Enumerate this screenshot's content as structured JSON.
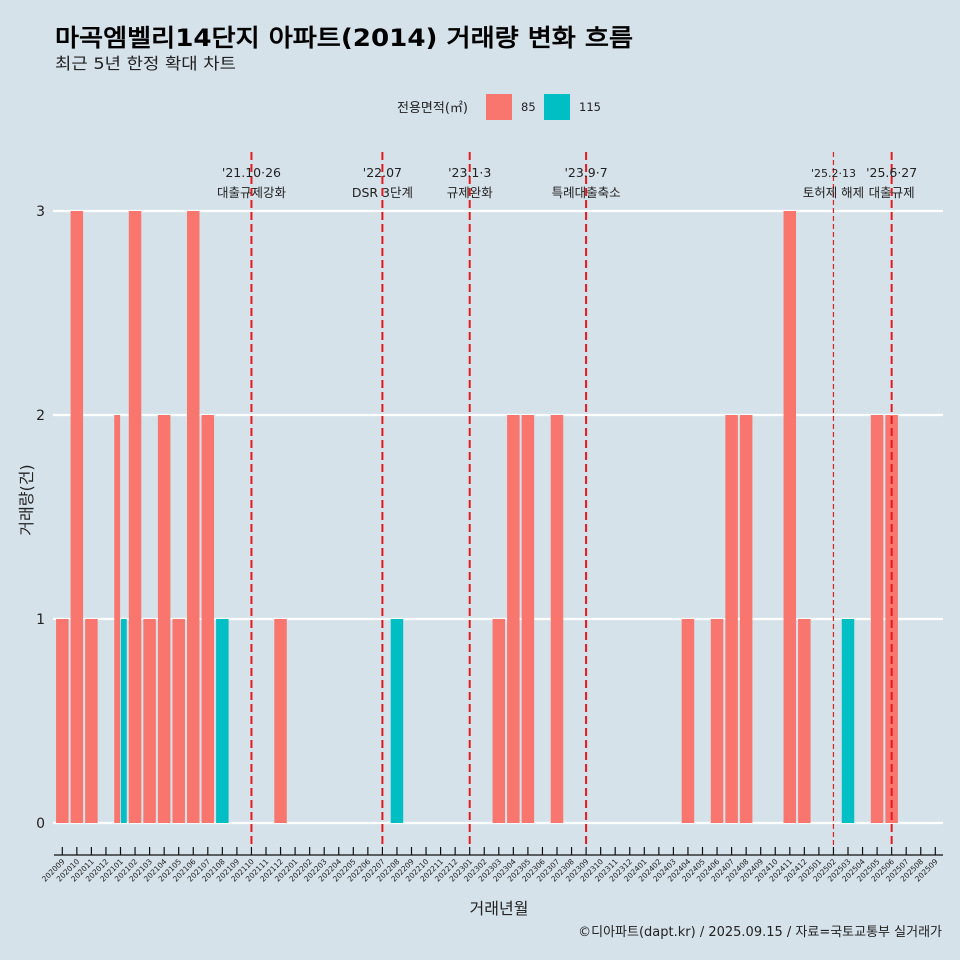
{
  "colors": {
    "background": "#D6E2EA",
    "series_85": "#F8766D",
    "series_115": "#00BFC4",
    "event_line": "#E41A1C",
    "grid": "#FFFFFF"
  },
  "header": {
    "title": "마곡엠벨리14단지 아파트(2014) 거래량 변화 흐름",
    "subtitle": "최근 5년 한정 확대 차트"
  },
  "legend": {
    "title": "전용면적(㎡)",
    "items": [
      {
        "label": "85",
        "color": "#F8766D"
      },
      {
        "label": "115",
        "color": "#00BFC4"
      }
    ]
  },
  "caption": "©디아파트(dapt.kr) / 2025.09.15 / 자료=국토교통부 실거래가",
  "chart_data": {
    "type": "bar",
    "title": "마곡엠벨리14단지 아파트(2014) 거래량 변화 흐름",
    "subtitle": "최근 5년 한정 확대 차트",
    "xlabel": "거래년월",
    "ylabel": "거래량(건)",
    "ylim": [
      0,
      3
    ],
    "yticks": [
      "0",
      "1",
      "2",
      "3"
    ],
    "grid": true,
    "legend_position": "top",
    "bar_mode": "dodge",
    "categories": [
      "202009",
      "202010",
      "202011",
      "202012",
      "202101",
      "202102",
      "202103",
      "202104",
      "202105",
      "202106",
      "202107",
      "202108",
      "202109",
      "202110",
      "202111",
      "202112",
      "202201",
      "202202",
      "202203",
      "202204",
      "202205",
      "202206",
      "202207",
      "202208",
      "202209",
      "202210",
      "202211",
      "202212",
      "202301",
      "202302",
      "202303",
      "202304",
      "202305",
      "202306",
      "202307",
      "202308",
      "202309",
      "202310",
      "202311",
      "202312",
      "202401",
      "202402",
      "202403",
      "202404",
      "202405",
      "202406",
      "202407",
      "202408",
      "202409",
      "202410",
      "202411",
      "202412",
      "202501",
      "202502",
      "202503",
      "202504",
      "202505",
      "202506",
      "202507",
      "202508",
      "202509"
    ],
    "series": [
      {
        "name": "85",
        "color": "#F8766D",
        "values": [
          1,
          3,
          1,
          0,
          2,
          3,
          1,
          2,
          1,
          3,
          2,
          0,
          0,
          0,
          0,
          1,
          0,
          0,
          0,
          0,
          0,
          0,
          0,
          0,
          0,
          0,
          0,
          0,
          0,
          0,
          1,
          2,
          2,
          0,
          2,
          0,
          0,
          0,
          0,
          0,
          0,
          0,
          0,
          1,
          0,
          1,
          2,
          2,
          0,
          0,
          3,
          1,
          0,
          0,
          0,
          0,
          2,
          2,
          0,
          0,
          0
        ]
      },
      {
        "name": "115",
        "color": "#00BFC4",
        "values": [
          0,
          0,
          0,
          0,
          1,
          0,
          0,
          0,
          0,
          0,
          0,
          1,
          0,
          0,
          0,
          0,
          0,
          0,
          0,
          0,
          0,
          0,
          0,
          1,
          0,
          0,
          0,
          0,
          0,
          0,
          0,
          0,
          0,
          0,
          0,
          0,
          0,
          0,
          0,
          0,
          0,
          0,
          0,
          0,
          0,
          0,
          0,
          0,
          0,
          0,
          0,
          0,
          0,
          0,
          1,
          0,
          0,
          0,
          0,
          0,
          0
        ]
      }
    ],
    "events": [
      {
        "month": "202110",
        "date": "'21.10·26",
        "label": "대출규제강화",
        "style": "major"
      },
      {
        "month": "202207",
        "date": "'22.07",
        "label": "DSR 3단계",
        "style": "major"
      },
      {
        "month": "202301",
        "date": "'23.1·3",
        "label": "규제완화",
        "style": "major"
      },
      {
        "month": "202309",
        "date": "'23.9·7",
        "label": "특례대출축소",
        "style": "major"
      },
      {
        "month": "202502",
        "date": "'25.2·13",
        "label": "토허제 해제",
        "style": "minor"
      },
      {
        "month": "202506",
        "date": "'25.6·27",
        "label": "대출규제",
        "style": "major"
      }
    ]
  }
}
